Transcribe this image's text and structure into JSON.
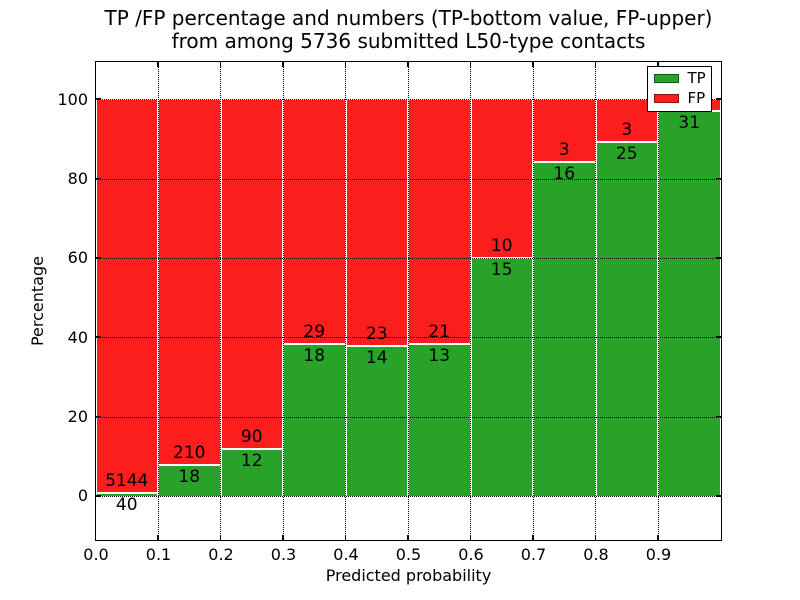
{
  "figure": {
    "title_line1": "TP /FP percentage and numbers (TP-bottom value, FP-upper)",
    "title_line2": "from among 5736 submitted L50-type contacts",
    "background_color": "#ffffff"
  },
  "axes": {
    "xlabel": "Predicted probability",
    "ylabel": "Percentage",
    "xtick_labels": [
      "0.0",
      "0.1",
      "0.2",
      "0.3",
      "0.4",
      "0.5",
      "0.6",
      "0.7",
      "0.8",
      "0.9"
    ],
    "xtick_values": [
      0.0,
      0.1,
      0.2,
      0.3,
      0.4,
      0.5,
      0.6,
      0.7,
      0.8,
      0.9
    ],
    "ytick_labels": [
      "0",
      "20",
      "40",
      "60",
      "80",
      "100"
    ],
    "ytick_values": [
      0,
      20,
      40,
      60,
      80,
      100
    ],
    "xlim": [
      0.0,
      1.0
    ],
    "ylim": [
      -11,
      109.5
    ],
    "grid_style": "dotted"
  },
  "legend": {
    "position": "upper-right",
    "entries": [
      {
        "label": "TP",
        "color": "#28a228",
        "edge_color": "#14581a"
      },
      {
        "label": "FP",
        "color": "#fc1d1d",
        "edge_color": "#8f1010"
      }
    ]
  },
  "chart_data": {
    "type": "bar",
    "subtype": "stacked-percentage",
    "title": "TP /FP percentage and numbers (TP-bottom value, FP-upper) from among 5736 submitted L50-type contacts",
    "xlabel": "Predicted probability",
    "ylabel": "Percentage",
    "total_submitted": 5736,
    "x_bin_edges": [
      0.0,
      0.1,
      0.2,
      0.3,
      0.4,
      0.5,
      0.6,
      0.7,
      0.8,
      0.9,
      1.0
    ],
    "categories": [
      "0.0-0.1",
      "0.1-0.2",
      "0.2-0.3",
      "0.3-0.4",
      "0.4-0.5",
      "0.5-0.6",
      "0.6-0.7",
      "0.7-0.8",
      "0.8-0.9",
      "0.9-1.0"
    ],
    "series": [
      {
        "name": "TP",
        "color": "#28a228",
        "counts": [
          40,
          18,
          12,
          18,
          14,
          13,
          15,
          16,
          25,
          31
        ],
        "percent": [
          0.77,
          7.89,
          11.76,
          38.3,
          37.84,
          38.24,
          60.0,
          84.21,
          89.29,
          96.9
        ]
      },
      {
        "name": "FP",
        "color": "#fc1d1d",
        "counts": [
          5144,
          210,
          90,
          29,
          23,
          21,
          10,
          3,
          3,
          null
        ],
        "percent": [
          99.23,
          92.11,
          88.24,
          61.7,
          62.16,
          61.76,
          40.0,
          15.79,
          10.71,
          3.1
        ]
      }
    ],
    "bar_edge_color": "#ffffff",
    "grid": true,
    "legend_position": "upper-right"
  }
}
